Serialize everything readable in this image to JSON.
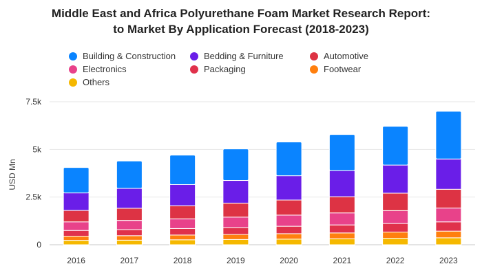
{
  "chart_data": {
    "type": "bar",
    "stacked": true,
    "title": "Middle East and Africa Polyurethane Foam Market Research Report:",
    "subtitle": "to Market By Application Forecast (2018-2023)",
    "xlabel": "",
    "ylabel": "USD Mn",
    "ylim": [
      0,
      7500
    ],
    "yticks": [
      0,
      2500,
      5000,
      7500
    ],
    "ytick_labels": [
      "0",
      "2.5k",
      "5k",
      "7.5k"
    ],
    "grid": true,
    "legend_position": "top",
    "categories": [
      "2016",
      "2017",
      "2018",
      "2019",
      "2020",
      "2021",
      "2022",
      "2023"
    ],
    "series": [
      {
        "name": "Others",
        "color": "#f5b800",
        "values": [
          230,
          240,
          260,
          275,
          295,
          315,
          340,
          365
        ]
      },
      {
        "name": "Footwear",
        "color": "#ff7f0e",
        "values": [
          220,
          235,
          250,
          265,
          285,
          305,
          325,
          350
        ]
      },
      {
        "name": "Packaging",
        "color": "#e0314b",
        "values": [
          300,
          320,
          340,
          365,
          390,
          420,
          450,
          485
        ]
      },
      {
        "name": "Electronics",
        "color": "#e8428a",
        "values": [
          450,
          480,
          510,
          545,
          585,
          630,
          675,
          725
        ]
      },
      {
        "name": "Automotive",
        "color": "#dd3344",
        "values": [
          600,
          640,
          685,
          735,
          790,
          850,
          915,
          985
        ]
      },
      {
        "name": "Bedding & Furniture",
        "color": "#6a1ee8",
        "values": [
          920,
          1040,
          1110,
          1185,
          1275,
          1370,
          1475,
          1590
        ]
      },
      {
        "name": "Building & Construction",
        "color": "#0a84ff",
        "values": [
          1330,
          1440,
          1545,
          1655,
          1770,
          1895,
          2030,
          2500
        ]
      }
    ],
    "legend_order": [
      "Building & Construction",
      "Bedding & Furniture",
      "Automotive",
      "Electronics",
      "Packaging",
      "Footwear",
      "Others"
    ]
  }
}
